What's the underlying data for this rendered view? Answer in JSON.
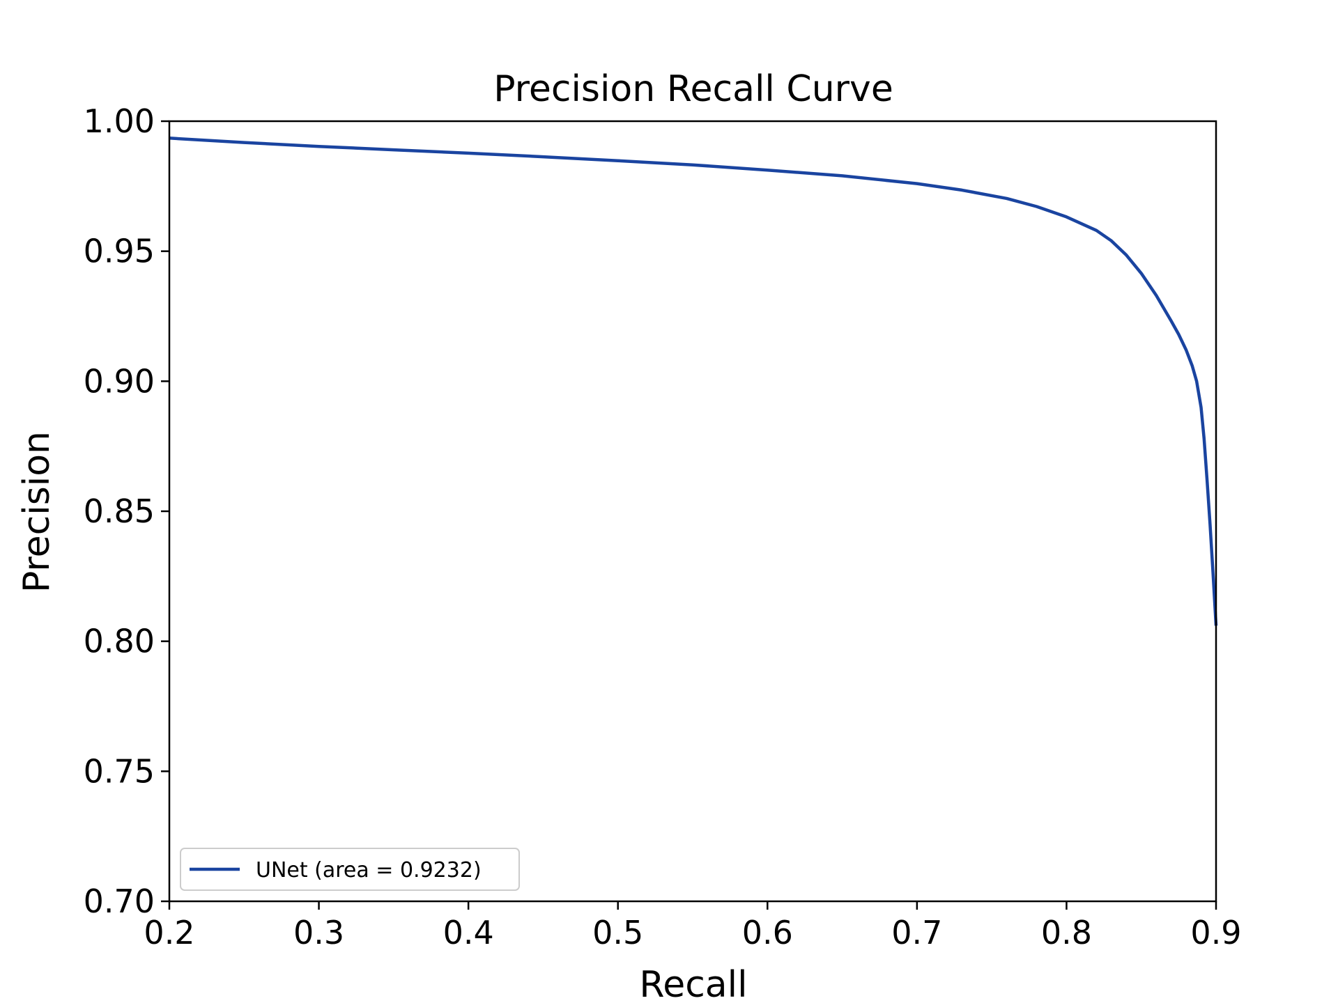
{
  "chart_data": {
    "type": "line",
    "title": "Precision Recall Curve",
    "xlabel": "Recall",
    "ylabel": "Precision",
    "xlim": [
      0.2,
      0.9
    ],
    "ylim": [
      0.7,
      1.0
    ],
    "grid": false,
    "legend_position": "lower-left",
    "x_ticks": [
      {
        "value": 0.2,
        "label": "0.2"
      },
      {
        "value": 0.3,
        "label": "0.3"
      },
      {
        "value": 0.4,
        "label": "0.4"
      },
      {
        "value": 0.5,
        "label": "0.5"
      },
      {
        "value": 0.6,
        "label": "0.6"
      },
      {
        "value": 0.7,
        "label": "0.7"
      },
      {
        "value": 0.8,
        "label": "0.8"
      },
      {
        "value": 0.9,
        "label": "0.9"
      }
    ],
    "y_ticks": [
      {
        "value": 0.7,
        "label": "0.70"
      },
      {
        "value": 0.75,
        "label": "0.75"
      },
      {
        "value": 0.8,
        "label": "0.80"
      },
      {
        "value": 0.85,
        "label": "0.85"
      },
      {
        "value": 0.9,
        "label": "0.90"
      },
      {
        "value": 0.95,
        "label": "0.95"
      },
      {
        "value": 1.0,
        "label": "1.00"
      }
    ],
    "series": [
      {
        "name": "UNet (area = 0.9232)",
        "color": "#1a44a0",
        "x": [
          0.2,
          0.25,
          0.3,
          0.35,
          0.4,
          0.45,
          0.5,
          0.55,
          0.6,
          0.65,
          0.7,
          0.73,
          0.76,
          0.78,
          0.8,
          0.82,
          0.83,
          0.84,
          0.85,
          0.86,
          0.87,
          0.875,
          0.88,
          0.884,
          0.887,
          0.89,
          0.892,
          0.894,
          0.896,
          0.898,
          0.9
        ],
        "y": [
          0.9935,
          0.9918,
          0.9903,
          0.989,
          0.9877,
          0.9863,
          0.9848,
          0.9832,
          0.9812,
          0.979,
          0.976,
          0.9735,
          0.9703,
          0.9672,
          0.9632,
          0.958,
          0.954,
          0.9485,
          0.9415,
          0.933,
          0.9232,
          0.918,
          0.912,
          0.906,
          0.9,
          0.89,
          0.878,
          0.862,
          0.845,
          0.826,
          0.806
        ]
      }
    ]
  }
}
